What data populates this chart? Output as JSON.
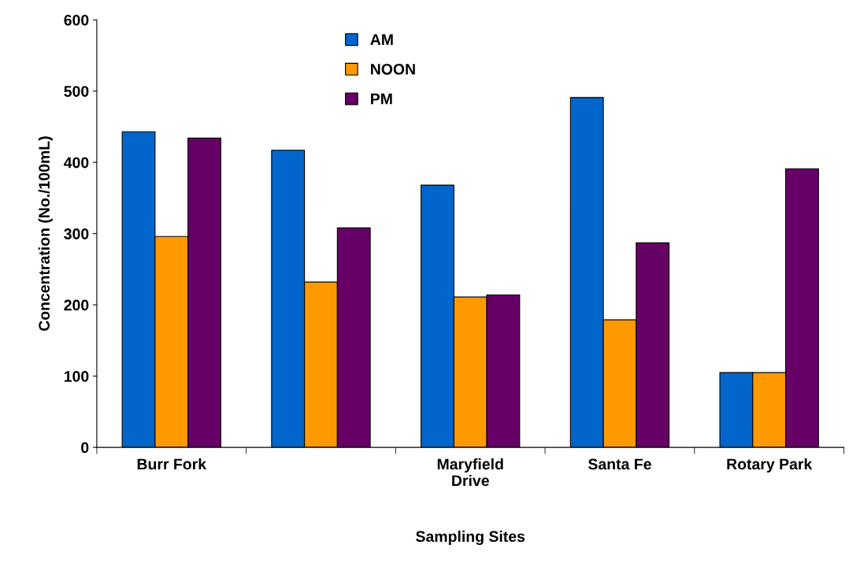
{
  "chart_data": {
    "type": "bar",
    "xlabel": "Sampling Sites",
    "ylabel": "Concentration (No./100mL)",
    "categories": [
      "Burr Fork",
      null,
      "Maryfield\nDrive",
      "Santa Fe",
      "Rotary Park"
    ],
    "series": [
      {
        "name": "AM",
        "color": "#0066cc",
        "values": [
          443,
          417,
          368,
          491,
          105
        ]
      },
      {
        "name": "NOON",
        "color": "#ff9900",
        "values": [
          296,
          232,
          211,
          179,
          105
        ]
      },
      {
        "name": "PM",
        "color": "#660066",
        "values": [
          434,
          308,
          214,
          287,
          391
        ]
      }
    ],
    "ylim": [
      0,
      600
    ],
    "yticks": [
      0,
      100,
      200,
      300,
      400,
      500,
      600
    ],
    "grid": false,
    "legend": "top"
  }
}
